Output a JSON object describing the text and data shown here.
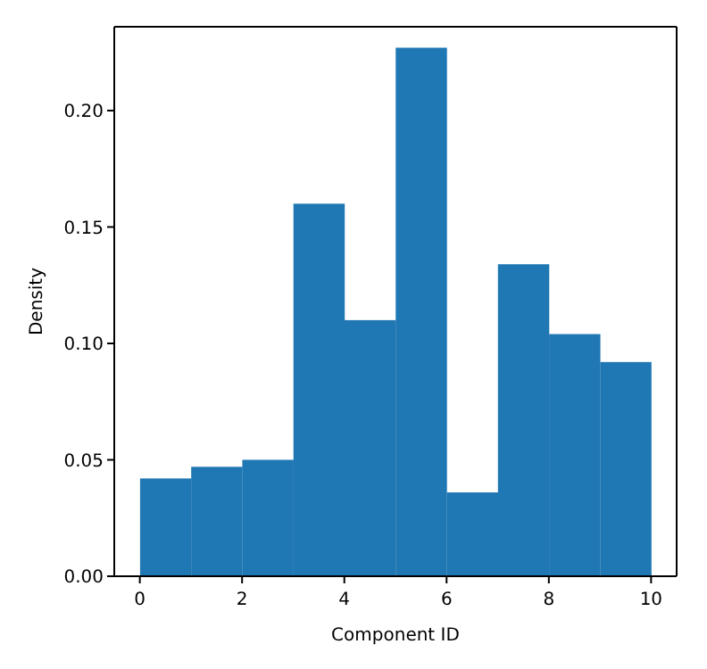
{
  "chart_data": {
    "type": "histogram",
    "xlabel": "Component ID",
    "ylabel": "Density",
    "bins": [
      0,
      1,
      2,
      3,
      4,
      5,
      6,
      7,
      8,
      9,
      10
    ],
    "values": [
      0.042,
      0.047,
      0.05,
      0.16,
      0.11,
      0.227,
      0.036,
      0.134,
      0.104,
      0.092
    ],
    "color": "#1f77b4",
    "xlim": [
      -0.5,
      10.5
    ],
    "xticks": [
      0,
      2,
      4,
      6,
      8,
      10
    ],
    "ylim": [
      0,
      0.236
    ],
    "yticks": [
      {
        "value": 0,
        "label": "0.00"
      },
      {
        "value": 0.05,
        "label": "0.05"
      },
      {
        "value": 0.1,
        "label": "0.10"
      },
      {
        "value": 0.15,
        "label": "0.15"
      },
      {
        "value": 0.2,
        "label": "0.20"
      }
    ],
    "grid": false,
    "legend": false
  }
}
